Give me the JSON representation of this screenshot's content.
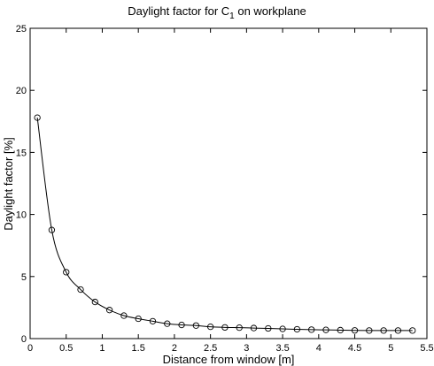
{
  "chart_data": {
    "type": "line",
    "title": "Daylight factor for C",
    "title_subscript": "1",
    "title_suffix": " on workplane",
    "xlabel": "Distance from window [m]",
    "ylabel": "Daylight factor [%]",
    "xlim": [
      0,
      5.5
    ],
    "ylim": [
      0,
      25
    ],
    "xticks": [
      0,
      0.5,
      1,
      1.5,
      2,
      2.5,
      3,
      3.5,
      4,
      4.5,
      5,
      5.5
    ],
    "xtick_labels": [
      "0",
      "0.5",
      "1",
      "1.5",
      "2",
      "2.5",
      "3",
      "3.5",
      "4",
      "4.5",
      "5",
      "5.5"
    ],
    "yticks": [
      0,
      5,
      10,
      15,
      20,
      25
    ],
    "ytick_labels": [
      "0",
      "5",
      "10",
      "15",
      "20",
      "25"
    ],
    "grid": false,
    "marker": "circle",
    "line_color": "#000000",
    "series": [
      {
        "x": [
          0.1,
          0.3,
          0.5,
          0.7,
          0.9,
          1.1,
          1.3,
          1.5,
          1.7,
          1.9,
          2.1,
          2.3,
          2.5,
          2.7,
          2.9,
          3.1,
          3.3,
          3.5,
          3.7,
          3.9,
          4.1,
          4.3,
          4.5,
          4.7,
          4.9,
          5.1,
          5.3
        ],
        "y": [
          17.8,
          8.75,
          5.35,
          3.95,
          2.95,
          2.3,
          1.85,
          1.6,
          1.4,
          1.2,
          1.1,
          1.05,
          0.95,
          0.9,
          0.88,
          0.85,
          0.82,
          0.78,
          0.75,
          0.72,
          0.7,
          0.68,
          0.66,
          0.65,
          0.65,
          0.65,
          0.65
        ]
      }
    ]
  }
}
